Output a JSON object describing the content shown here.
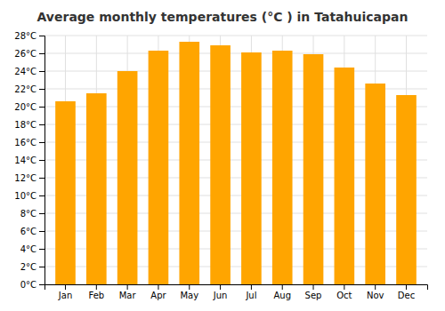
{
  "chart_data": {
    "type": "bar",
    "title": "Average monthly temperatures (°C ) in Tatahuicapan",
    "categories": [
      "Jan",
      "Feb",
      "Mar",
      "Apr",
      "May",
      "Jun",
      "Jul",
      "Aug",
      "Sep",
      "Oct",
      "Nov",
      "Dec"
    ],
    "values": [
      20.6,
      21.5,
      24.0,
      26.3,
      27.3,
      26.9,
      26.1,
      26.3,
      25.9,
      24.4,
      22.6,
      21.3
    ],
    "color": "#FFA500",
    "ylim": [
      0,
      28
    ],
    "yticks": [
      {
        "value": 0,
        "label": "0°C"
      },
      {
        "value": 2,
        "label": "2°C"
      },
      {
        "value": 4,
        "label": "4°C"
      },
      {
        "value": 6,
        "label": "6°C"
      },
      {
        "value": 8,
        "label": "8°C"
      },
      {
        "value": 10,
        "label": "10°C"
      },
      {
        "value": 12,
        "label": "12°C"
      },
      {
        "value": 14,
        "label": "14°C"
      },
      {
        "value": 16,
        "label": "16°C"
      },
      {
        "value": 18,
        "label": "18°C"
      },
      {
        "value": 20,
        "label": "20°C"
      },
      {
        "value": 22,
        "label": "22°C"
      },
      {
        "value": 24,
        "label": "24°C"
      },
      {
        "value": 26,
        "label": "26°C"
      },
      {
        "value": 28,
        "label": "28°C"
      }
    ],
    "grid": true
  }
}
